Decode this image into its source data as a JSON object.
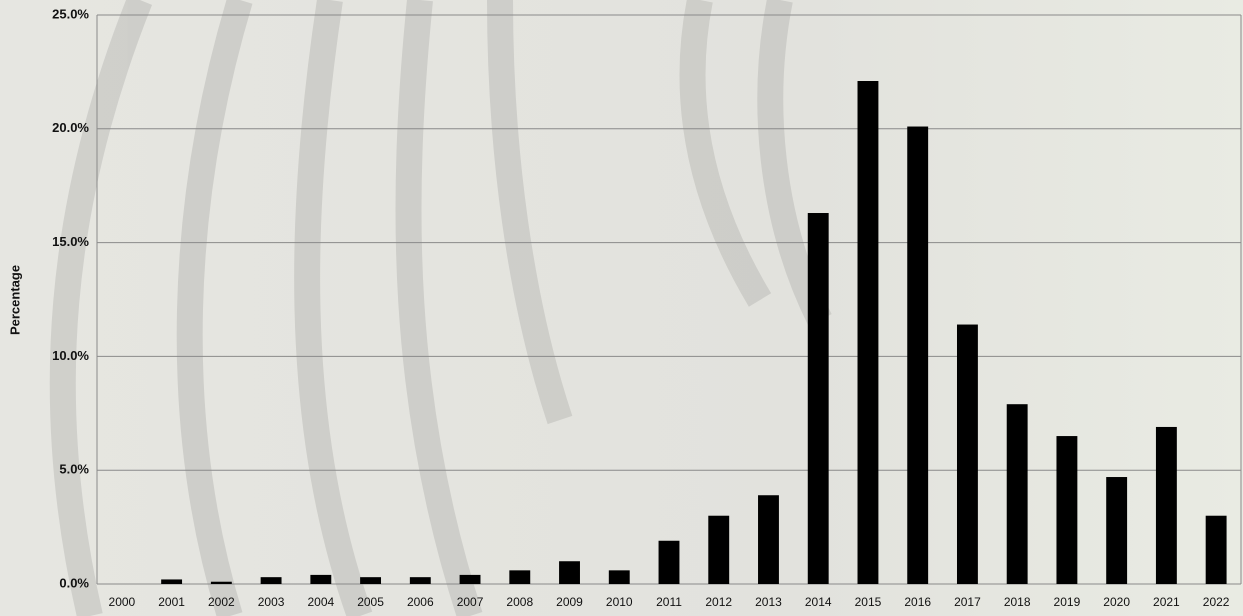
{
  "chart_data": {
    "type": "bar",
    "y_label": "Percentage",
    "categories": [
      "2000",
      "2001",
      "2002",
      "2003",
      "2004",
      "2005",
      "2006",
      "2007",
      "2008",
      "2009",
      "2010",
      "2011",
      "2012",
      "2013",
      "2014",
      "2015",
      "2016",
      "2017",
      "2018",
      "2019",
      "2020",
      "2021",
      "2022"
    ],
    "values": [
      0,
      0.2,
      0.1,
      0.3,
      0.4,
      0.3,
      0.3,
      0.4,
      0.6,
      1.0,
      0.6,
      1.9,
      3.0,
      3.9,
      16.3,
      22.1,
      20.1,
      11.4,
      7.9,
      6.5,
      4.7,
      6.9,
      3.0
    ],
    "color": "#000000",
    "ylim": [
      0,
      25
    ],
    "yticks": [
      {
        "value": 0,
        "label": "0.0%"
      },
      {
        "value": 5,
        "label": "5.0%"
      },
      {
        "value": 10,
        "label": "10.0%"
      },
      {
        "value": 15,
        "label": "15.0%"
      },
      {
        "value": 20,
        "label": "20.0%"
      },
      {
        "value": 25,
        "label": "25.0%"
      }
    ],
    "grid": true
  }
}
